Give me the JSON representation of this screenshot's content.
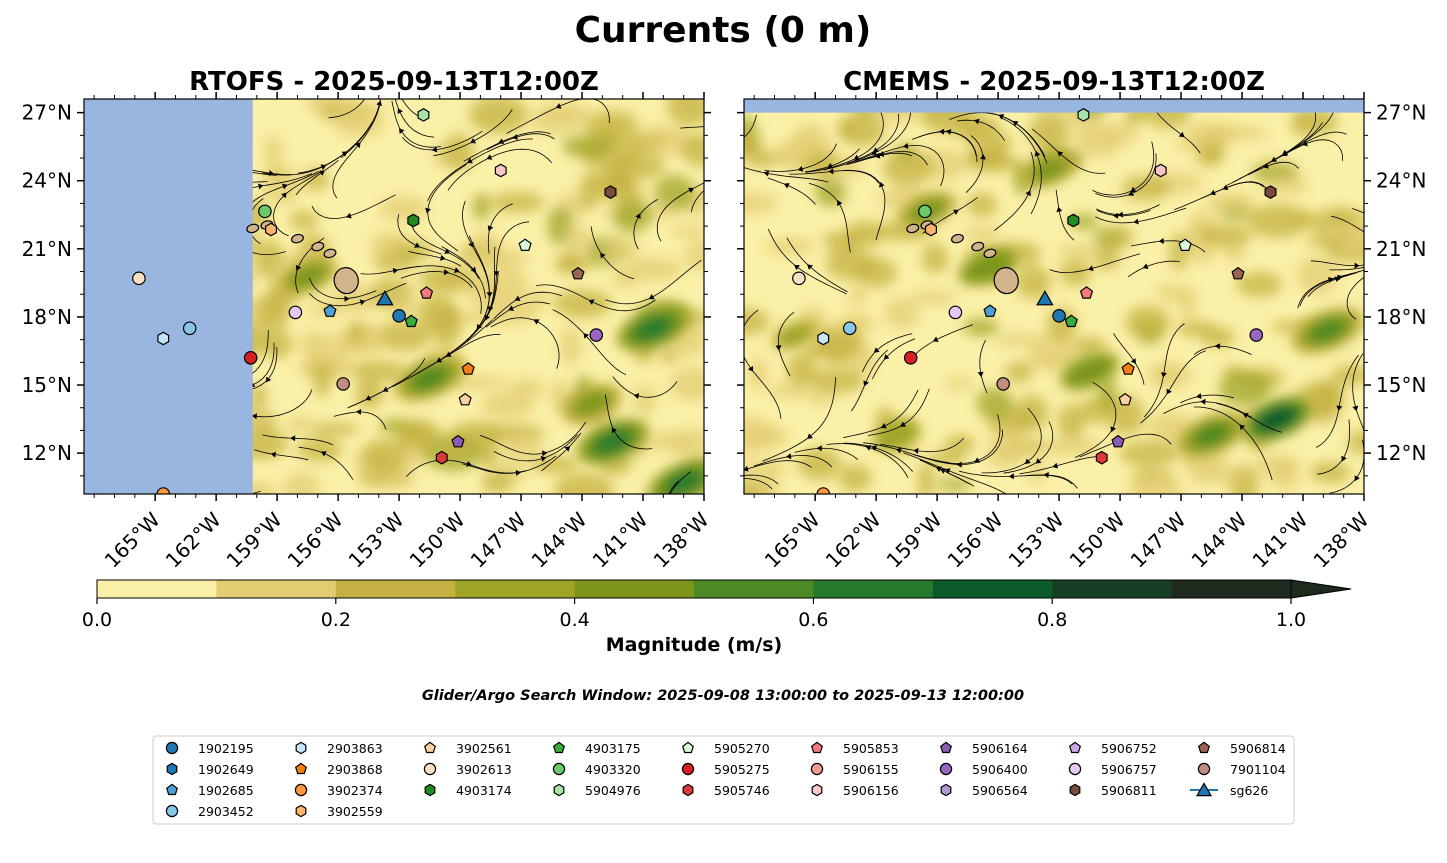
{
  "figure": {
    "title": "Currents (0 m)",
    "window_text": "Glider/Argo Search Window: 2025-09-08 13:00:00 to 2025-09-13 12:00:00"
  },
  "chart_data": [
    {
      "type": "heatmap",
      "panel": "left",
      "title": "RTOFS - 2025-09-13T12:00Z",
      "variable": "surface current magnitude with streamlines",
      "xlim": [
        -168.5,
        -138
      ],
      "ylim": [
        10.2,
        27.6
      ],
      "land_mask_west_of": -160.2,
      "x_ticks": [
        "165°W",
        "162°W",
        "159°W",
        "156°W",
        "153°W",
        "150°W",
        "147°W",
        "144°W",
        "141°W",
        "138°W"
      ],
      "x_tick_values": [
        -165,
        -162,
        -159,
        -156,
        -153,
        -150,
        -147,
        -144,
        -141,
        -138
      ],
      "y_ticks": [
        "12°N",
        "15°N",
        "18°N",
        "21°N",
        "24°N",
        "27°N"
      ],
      "y_tick_values": [
        12,
        15,
        18,
        21,
        24,
        27
      ],
      "tick_labels_left": true,
      "strong_current_zones": [
        {
          "lon": -142.5,
          "lat": 12.5,
          "mag": 0.75
        },
        {
          "lon": -140.5,
          "lat": 17.5,
          "mag": 0.7
        },
        {
          "lon": -151.5,
          "lat": 15.3,
          "mag": 0.6
        },
        {
          "lon": -139,
          "lat": 10.7,
          "mag": 0.7
        },
        {
          "lon": -143.5,
          "lat": 14.2,
          "mag": 0.5
        },
        {
          "lon": -157.5,
          "lat": 19.8,
          "mag": 0.45
        }
      ]
    },
    {
      "type": "heatmap",
      "panel": "right",
      "title": "CMEMS - 2025-09-13T12:00Z",
      "variable": "surface current magnitude with streamlines",
      "xlim": [
        -168.5,
        -138
      ],
      "ylim": [
        10.2,
        27.6
      ],
      "land_mask_north_of": 27.0,
      "x_ticks": [
        "165°W",
        "162°W",
        "159°W",
        "156°W",
        "153°W",
        "150°W",
        "147°W",
        "144°W",
        "141°W",
        "138°W"
      ],
      "x_tick_values": [
        -165,
        -162,
        -159,
        -156,
        -153,
        -150,
        -147,
        -144,
        -141,
        -138
      ],
      "y_ticks": [
        "12°N",
        "15°N",
        "18°N",
        "21°N",
        "24°N",
        "27°N"
      ],
      "y_tick_values": [
        12,
        15,
        18,
        21,
        24,
        27
      ],
      "tick_labels_right": true,
      "strong_current_zones": [
        {
          "lon": -142.3,
          "lat": 13.5,
          "mag": 0.85
        },
        {
          "lon": -145.5,
          "lat": 12.8,
          "mag": 0.65
        },
        {
          "lon": -139.8,
          "lat": 17.4,
          "mag": 0.6
        },
        {
          "lon": -156.5,
          "lat": 20.2,
          "mag": 0.55
        },
        {
          "lon": -151.5,
          "lat": 15.6,
          "mag": 0.55
        },
        {
          "lon": -159.5,
          "lat": 22.7,
          "mag": 0.45
        },
        {
          "lon": -153.5,
          "lat": 24.5,
          "mag": 0.45
        },
        {
          "lon": -161,
          "lat": 12.8,
          "mag": 0.4
        },
        {
          "lon": -166,
          "lat": 17.2,
          "mag": 0.35
        }
      ]
    }
  ],
  "colorbar": {
    "label": "Magnitude (m/s)",
    "range": [
      0,
      1.0
    ],
    "extend": "max",
    "ticks": [
      "0.0",
      "0.2",
      "0.4",
      "0.6",
      "0.8",
      "1.0"
    ],
    "tick_values": [
      0,
      0.2,
      0.4,
      0.6,
      0.8,
      1.0
    ],
    "bins": [
      0,
      0.1,
      0.2,
      0.3,
      0.4,
      0.5,
      0.6,
      0.7,
      0.8,
      0.9,
      1.0
    ],
    "colors": [
      "#fbf0a8",
      "#e3cd73",
      "#c4b142",
      "#9ea527",
      "#7c951a",
      "#4d8924",
      "#267a2e",
      "#0d5a2b",
      "#173f25",
      "#1d2a1d"
    ]
  },
  "colors": {
    "land": "#d2b48c",
    "land_mask": "#98b6e0",
    "streamline": "#000000"
  },
  "islands": [
    {
      "lon": -155.6,
      "lat": 19.6
    },
    {
      "lon": -156.4,
      "lat": 20.8
    },
    {
      "lon": -157.0,
      "lat": 21.1
    },
    {
      "lon": -158.0,
      "lat": 21.45
    },
    {
      "lon": -159.5,
      "lat": 22.05
    },
    {
      "lon": -160.2,
      "lat": 21.9
    }
  ],
  "markers": [
    {
      "id": "1902195",
      "shape": "circle",
      "color": "#1f77b4",
      "lon": -153.0,
      "lat": 18.05
    },
    {
      "id": "1902649",
      "shape": "hexagon",
      "color": "#1f77b4",
      "lon": null,
      "lat": null
    },
    {
      "id": "1902685",
      "shape": "pentagon",
      "color": "#4f9fd6",
      "lon": -156.4,
      "lat": 18.25
    },
    {
      "id": "2903452",
      "shape": "circle",
      "color": "#86c6e6",
      "lon": -163.3,
      "lat": 17.5
    },
    {
      "id": "2903863",
      "shape": "hexagon",
      "color": "#c6e6f7",
      "lon": -164.6,
      "lat": 17.05
    },
    {
      "id": "2903868",
      "shape": "pentagon",
      "color": "#f57f0f",
      "lon": -149.6,
      "lat": 15.7
    },
    {
      "id": "3902374",
      "shape": "circle",
      "color": "#ff9640",
      "lon": -164.6,
      "lat": 10.2
    },
    {
      "id": "3902559",
      "shape": "hexagon",
      "color": "#fdb56e",
      "lon": -159.3,
      "lat": 21.85
    },
    {
      "id": "3902561",
      "shape": "pentagon",
      "color": "#fdd0a2",
      "lon": -149.75,
      "lat": 14.35
    },
    {
      "id": "3902613",
      "shape": "circle",
      "color": "#fde0c2",
      "lon": -165.8,
      "lat": 19.7
    },
    {
      "id": "4903174",
      "shape": "hexagon",
      "color": "#238b22",
      "lon": -152.3,
      "lat": 22.25
    },
    {
      "id": "4903175",
      "shape": "pentagon",
      "color": "#3aac3a",
      "lon": -152.4,
      "lat": 17.8
    },
    {
      "id": "4903320",
      "shape": "circle",
      "color": "#6cc96c",
      "lon": -159.6,
      "lat": 22.65
    },
    {
      "id": "5904976",
      "shape": "hexagon",
      "color": "#a8e2a8",
      "lon": -151.8,
      "lat": 26.9
    },
    {
      "id": "5905270",
      "shape": "pentagon",
      "color": "#d9f8d9",
      "lon": -146.8,
      "lat": 21.15
    },
    {
      "id": "5905275",
      "shape": "circle",
      "color": "#d62020",
      "lon": -160.3,
      "lat": 16.2
    },
    {
      "id": "5905746",
      "shape": "hexagon",
      "color": "#de3a3a",
      "lon": -150.9,
      "lat": 11.8
    },
    {
      "id": "5905853",
      "shape": "pentagon",
      "color": "#f47a80",
      "lon": -151.65,
      "lat": 19.05
    },
    {
      "id": "5906155",
      "shape": "circle",
      "color": "#f09a92",
      "lon": null,
      "lat": null
    },
    {
      "id": "5906156",
      "shape": "hexagon",
      "color": "#fbc6c6",
      "lon": -148.0,
      "lat": 24.45
    },
    {
      "id": "5906164",
      "shape": "pentagon",
      "color": "#8b5cb5",
      "lon": -150.1,
      "lat": 12.5
    },
    {
      "id": "5906400",
      "shape": "circle",
      "color": "#9b66c2",
      "lon": -143.3,
      "lat": 17.2
    },
    {
      "id": "5906564",
      "shape": "hexagon",
      "color": "#b398d6",
      "lon": null,
      "lat": null
    },
    {
      "id": "5906752",
      "shape": "pentagon",
      "color": "#c8a6ea",
      "lon": null,
      "lat": null
    },
    {
      "id": "5906757",
      "shape": "circle",
      "color": "#e6c9f7",
      "lon": -158.1,
      "lat": 18.2
    },
    {
      "id": "5906811",
      "shape": "hexagon",
      "color": "#7b4a3f",
      "lon": -142.6,
      "lat": 23.5
    },
    {
      "id": "5906814",
      "shape": "pentagon",
      "color": "#9c6352",
      "lon": -144.2,
      "lat": 19.9
    },
    {
      "id": "7901104",
      "shape": "circle",
      "color": "#c08d7e",
      "lon": -155.75,
      "lat": 15.05
    },
    {
      "id": "sg626",
      "shape": "triangle",
      "color": "#1f77b4",
      "lon": -153.7,
      "lat": 18.8
    }
  ],
  "legend": {
    "columns": [
      [
        "1902195",
        "1902649",
        "1902685",
        "2903452"
      ],
      [
        "2903863",
        "2903868",
        "3902374",
        "3902559"
      ],
      [
        "3902561",
        "3902613",
        "4903174"
      ],
      [
        "4903175",
        "4903320",
        "5904976"
      ],
      [
        "5905270",
        "5905275",
        "5905746"
      ],
      [
        "5905853",
        "5906155",
        "5906156"
      ],
      [
        "5906164",
        "5906400",
        "5906564"
      ],
      [
        "5906752",
        "5906757",
        "5906811"
      ],
      [
        "5906814",
        "7901104",
        "sg626"
      ]
    ]
  }
}
